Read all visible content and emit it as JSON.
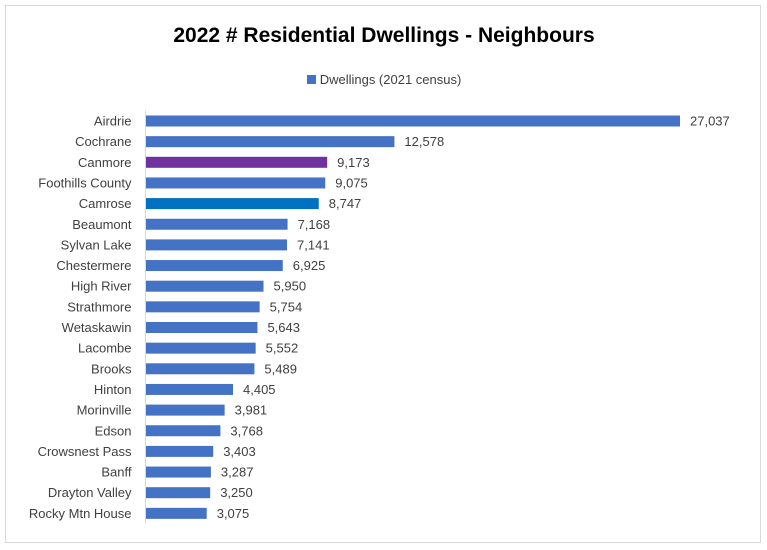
{
  "chart_data": {
    "type": "bar",
    "orientation": "horizontal",
    "title": "2022 # Residential Dwellings - Neighbours",
    "legend": {
      "position": "top",
      "label": "Dwellings (2021 census)",
      "color": "#4472c4"
    },
    "grid": false,
    "xlim": [
      0,
      27037
    ],
    "series": [
      {
        "name": "Dwellings (2021 census)",
        "color": "#4472c4",
        "categories": [
          "Airdrie",
          "Cochrane",
          "Canmore",
          "Foothills County",
          "Camrose",
          "Beaumont",
          "Sylvan Lake",
          "Chestermere",
          "High River",
          "Strathmore",
          "Wetaskawin",
          "Lacombe",
          "Brooks",
          "Hinton",
          "Morinville",
          "Edson",
          "Crowsnest Pass",
          "Banff",
          "Drayton Valley",
          "Rocky Mtn House"
        ],
        "values": [
          27037,
          12578,
          9173,
          9075,
          8747,
          7168,
          7141,
          6925,
          5950,
          5754,
          5643,
          5552,
          5489,
          4405,
          3981,
          3768,
          3403,
          3287,
          3250,
          3075
        ],
        "value_labels": [
          "27,037",
          "12,578",
          "9,173",
          "9,075",
          "8,747",
          "7,168",
          "7,141",
          "6,925",
          "5,950",
          "5,754",
          "5,643",
          "5,552",
          "5,489",
          "4,405",
          "3,981",
          "3,768",
          "3,403",
          "3,287",
          "3,250",
          "3,075"
        ]
      }
    ],
    "highlights": [
      {
        "category": "Canmore",
        "color": "#7030a0"
      },
      {
        "category": "Camrose",
        "color": "#0070c0"
      }
    ]
  }
}
